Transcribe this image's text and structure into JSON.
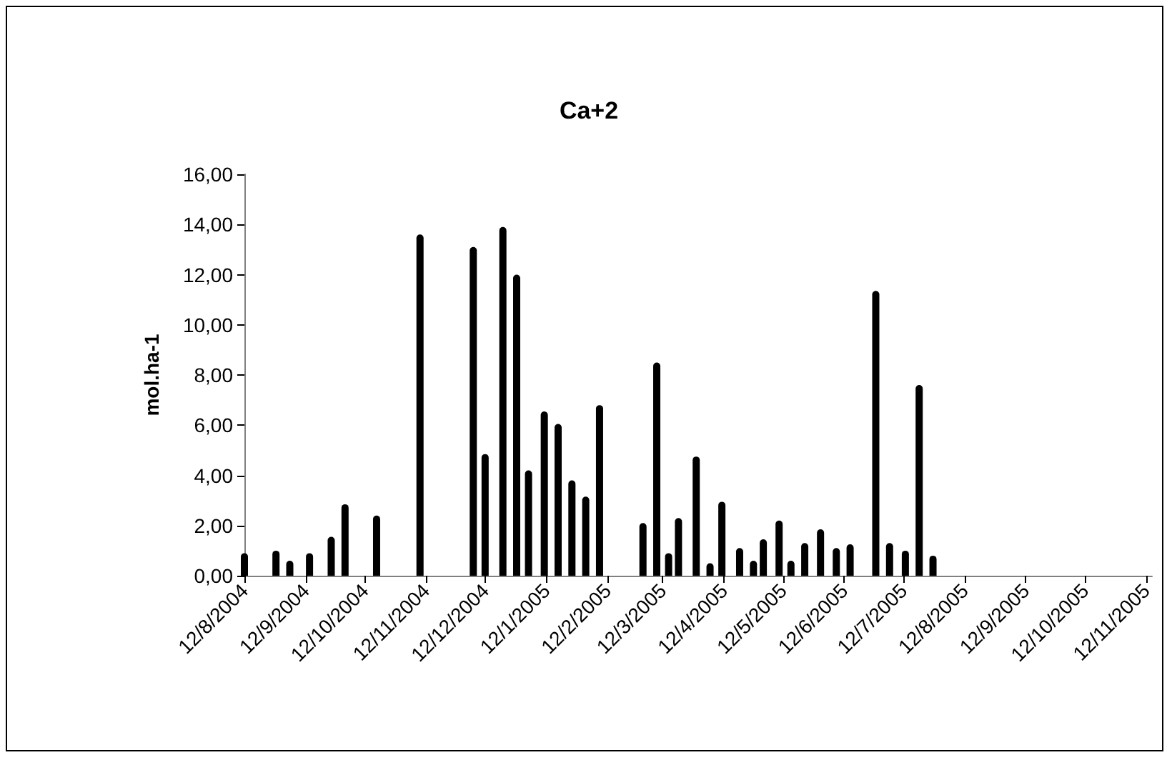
{
  "chart_data": {
    "type": "bar",
    "title": "Ca+2",
    "ylabel": "mol.ha-1",
    "x": [
      "2004-08-12",
      "2004-08-28",
      "2004-09-04",
      "2004-09-14",
      "2004-09-25",
      "2004-10-02",
      "2004-10-18",
      "2004-11-09",
      "2004-12-06",
      "2004-12-12",
      "2004-12-21",
      "2004-12-28",
      "2005-01-03",
      "2005-01-11",
      "2005-01-18",
      "2005-01-25",
      "2005-02-01",
      "2005-02-08",
      "2005-03-02",
      "2005-03-09",
      "2005-03-15",
      "2005-03-20",
      "2005-03-29",
      "2005-04-05",
      "2005-04-11",
      "2005-04-20",
      "2005-04-27",
      "2005-05-02",
      "2005-05-10",
      "2005-05-16",
      "2005-05-23",
      "2005-05-31",
      "2005-06-08",
      "2005-06-15",
      "2005-06-28",
      "2005-07-05",
      "2005-07-13",
      "2005-07-20",
      "2005-07-27"
    ],
    "values": [
      0.9,
      1.0,
      0.6,
      0.9,
      1.55,
      2.85,
      2.4,
      13.6,
      13.1,
      4.85,
      13.9,
      12.0,
      4.2,
      6.55,
      6.05,
      3.8,
      3.15,
      6.8,
      2.1,
      8.5,
      0.9,
      2.3,
      4.75,
      0.5,
      2.95,
      1.1,
      0.6,
      1.45,
      2.2,
      0.6,
      1.3,
      1.85,
      1.1,
      1.25,
      11.35,
      1.3,
      1.0,
      7.6,
      0.8
    ],
    "color": "#000000",
    "xlim": [
      "2004-08-12",
      "2005-11-15"
    ],
    "xticks": [
      {
        "value": "2004-08-12",
        "label": "12/8/2004"
      },
      {
        "value": "2004-09-12",
        "label": "12/9/2004"
      },
      {
        "value": "2004-10-12",
        "label": "12/10/2004"
      },
      {
        "value": "2004-11-12",
        "label": "12/11/2004"
      },
      {
        "value": "2004-12-12",
        "label": "12/12/2004"
      },
      {
        "value": "2005-01-12",
        "label": "12/1/2005"
      },
      {
        "value": "2005-02-12",
        "label": "12/2/2005"
      },
      {
        "value": "2005-03-12",
        "label": "12/3/2005"
      },
      {
        "value": "2005-04-12",
        "label": "12/4/2005"
      },
      {
        "value": "2005-05-12",
        "label": "12/5/2005"
      },
      {
        "value": "2005-06-12",
        "label": "12/6/2005"
      },
      {
        "value": "2005-07-12",
        "label": "12/7/2005"
      },
      {
        "value": "2005-08-12",
        "label": "12/8/2005"
      },
      {
        "value": "2005-09-12",
        "label": "12/9/2005"
      },
      {
        "value": "2005-10-12",
        "label": "12/10/2005"
      },
      {
        "value": "2005-11-12",
        "label": "12/11/2005"
      }
    ],
    "ylim": [
      0,
      16
    ],
    "yticks": [
      {
        "value": 0,
        "label": "0,00"
      },
      {
        "value": 2,
        "label": "2,00"
      },
      {
        "value": 4,
        "label": "4,00"
      },
      {
        "value": 6,
        "label": "6,00"
      },
      {
        "value": 8,
        "label": "8,00"
      },
      {
        "value": 10,
        "label": "10,00"
      },
      {
        "value": 12,
        "label": "12,00"
      },
      {
        "value": 14,
        "label": "14,00"
      },
      {
        "value": 16,
        "label": "16,00"
      }
    ],
    "data_labels": false
  }
}
